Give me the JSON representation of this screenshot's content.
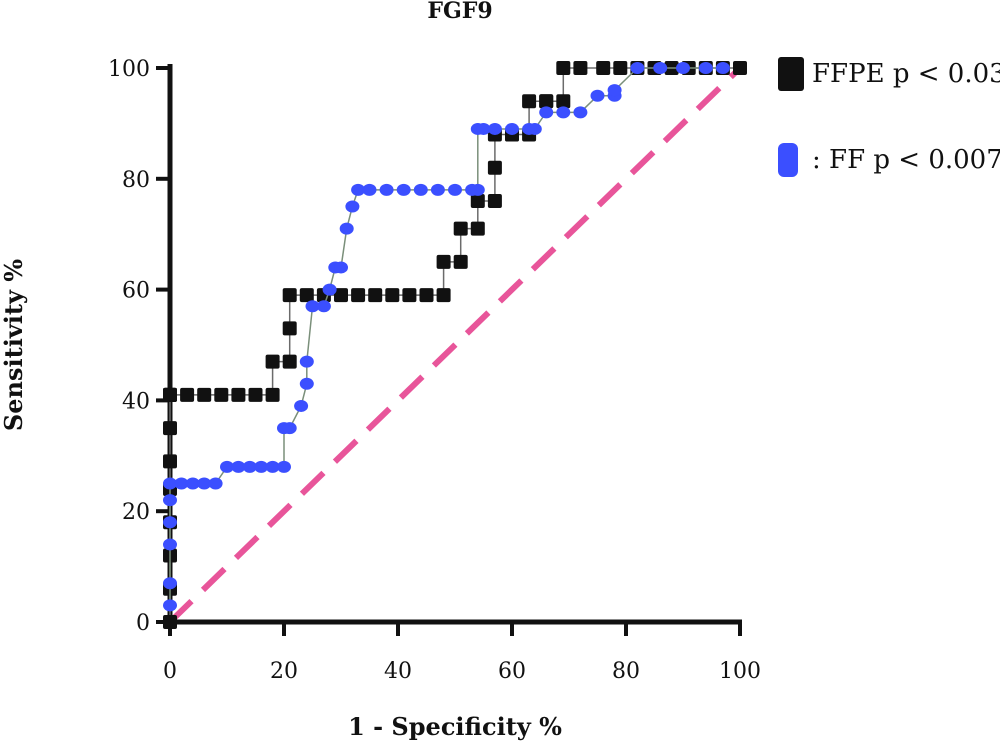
{
  "chart_data": {
    "type": "line",
    "title": "FGF9",
    "xlabel": "1 - Specificity %",
    "ylabel": "Sensitivity %",
    "xlim": [
      0,
      100
    ],
    "ylim": [
      0,
      100
    ],
    "xticks": [
      0,
      20,
      40,
      60,
      80,
      100
    ],
    "yticks": [
      0,
      20,
      40,
      60,
      80,
      100
    ],
    "grid": false,
    "legend_position": "top-right",
    "series": [
      {
        "name": "FFPE p < 0.03",
        "color": "#111111",
        "marker": "square",
        "x": [
          0,
          0,
          0,
          0,
          0,
          0,
          0,
          0,
          0,
          0,
          0,
          3,
          6,
          9,
          12,
          15,
          18,
          18,
          21,
          21,
          21,
          24,
          27,
          30,
          33,
          36,
          39,
          42,
          45,
          48,
          48,
          51,
          51,
          54,
          54,
          57,
          57,
          57,
          60,
          60,
          63,
          63,
          66,
          66,
          69,
          69,
          72,
          76,
          79,
          82,
          85,
          88,
          91,
          94,
          97,
          100
        ],
        "y": [
          0,
          6,
          12,
          18,
          24,
          29,
          35,
          41,
          41,
          41,
          41,
          41,
          41,
          41,
          41,
          41,
          41,
          47,
          47,
          53,
          59,
          59,
          59,
          59,
          59,
          59,
          59,
          59,
          59,
          59,
          65,
          65,
          71,
          71,
          76,
          76,
          82,
          88,
          88,
          88,
          88,
          94,
          94,
          94,
          94,
          100,
          100,
          100,
          100,
          100,
          100,
          100,
          100,
          100,
          100,
          100
        ]
      },
      {
        "name": ": FF p < 0.007",
        "color": "#3b4fff",
        "marker": "circle",
        "x": [
          0,
          0,
          0,
          0,
          0,
          0,
          2,
          4,
          6,
          8,
          10,
          12,
          14,
          16,
          18,
          20,
          20,
          21,
          23,
          24,
          24,
          25,
          27,
          28,
          29,
          30,
          31,
          32,
          33,
          35,
          38,
          41,
          44,
          47,
          50,
          53,
          54,
          54,
          55,
          57,
          60,
          63,
          64,
          66,
          69,
          72,
          75,
          78,
          78,
          82,
          86,
          90,
          94,
          97
        ],
        "y": [
          3,
          7,
          14,
          18,
          22,
          25,
          25,
          25,
          25,
          25,
          28,
          28,
          28,
          28,
          28,
          28,
          35,
          35,
          39,
          43,
          47,
          57,
          57,
          60,
          64,
          64,
          71,
          75,
          78,
          78,
          78,
          78,
          78,
          78,
          78,
          78,
          78,
          89,
          89,
          89,
          89,
          89,
          89,
          92,
          92,
          92,
          95,
          95,
          96,
          100,
          100,
          100,
          100,
          100
        ]
      },
      {
        "name": "",
        "color": "#e8559a",
        "marker": "none",
        "dashed": true,
        "x": [
          0,
          100
        ],
        "y": [
          0,
          100
        ]
      }
    ]
  }
}
